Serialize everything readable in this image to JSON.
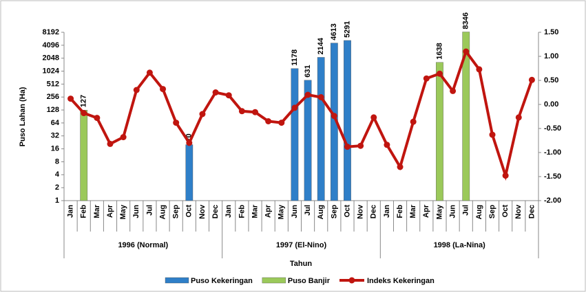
{
  "chart_data": {
    "type": "bar-line",
    "y_label": "Puso Lahan (Ha)",
    "x_label": "Tahun",
    "categories": [
      "Jan",
      "Feb",
      "Mar",
      "Apr",
      "May",
      "Jun",
      "Jul",
      "Aug",
      "Sep",
      "Oct",
      "Nov",
      "Dec",
      "Jan",
      "Feb",
      "Mar",
      "Apr",
      "May",
      "Jun",
      "Jul",
      "Aug",
      "Sep",
      "Oct",
      "Nov",
      "Dec",
      "Jan",
      "Feb",
      "Mar",
      "Apr",
      "May",
      "Jun",
      "Jul",
      "Aug",
      "Sep",
      "Oct",
      "Nov",
      "Dec"
    ],
    "groups": [
      "1996 (Normal)",
      "1997 (El-Nino)",
      "1998 (La-Nina)"
    ],
    "series": [
      {
        "name": "Puso Kekeringan",
        "type": "bar",
        "color": "#2f7fc8",
        "values": [
          null,
          null,
          null,
          null,
          null,
          null,
          null,
          null,
          null,
          20,
          null,
          null,
          null,
          null,
          null,
          null,
          null,
          1178,
          631,
          2144,
          4613,
          5291,
          null,
          null,
          null,
          null,
          null,
          null,
          null,
          null,
          null,
          null,
          null,
          null,
          null,
          null
        ]
      },
      {
        "name": "Puso Banjir",
        "type": "bar",
        "color": "#9bc95a",
        "values": [
          null,
          127,
          null,
          null,
          null,
          null,
          null,
          null,
          null,
          null,
          null,
          null,
          null,
          null,
          null,
          null,
          null,
          null,
          null,
          null,
          null,
          null,
          null,
          null,
          null,
          null,
          null,
          null,
          1638,
          null,
          8346,
          null,
          null,
          null,
          null,
          null
        ]
      },
      {
        "name": "Indeks Kekeringan",
        "type": "line",
        "axis": "y2",
        "color": "#c0150f",
        "values": [
          0.12,
          -0.18,
          -0.28,
          -0.82,
          -0.68,
          0.3,
          0.66,
          0.32,
          -0.38,
          -0.8,
          -0.2,
          0.25,
          0.19,
          -0.14,
          -0.16,
          -0.35,
          -0.38,
          -0.07,
          0.2,
          0.15,
          -0.24,
          -0.88,
          -0.86,
          -0.27,
          -0.84,
          -1.3,
          -0.36,
          0.54,
          0.64,
          0.28,
          1.1,
          0.73,
          -0.63,
          -1.48,
          -0.27,
          0.51
        ]
      }
    ],
    "log_scale": true,
    "ylim": [
      1,
      8192
    ],
    "yticks": [
      1,
      2,
      4,
      8,
      16,
      32,
      64,
      128,
      256,
      512,
      1024,
      2048,
      4096,
      8192
    ],
    "y2lim": [
      -2,
      1.5
    ],
    "y2ticks": [
      {
        "value": -2,
        "label": "-2.00"
      },
      {
        "value": -1.5,
        "label": "-1.50"
      },
      {
        "value": -1,
        "label": "-1.00"
      },
      {
        "value": -0.5,
        "label": "-0.50"
      },
      {
        "value": 0,
        "label": "0.00"
      },
      {
        "value": 0.5,
        "label": "0.50"
      },
      {
        "value": 1,
        "label": "1.00"
      },
      {
        "value": 1.5,
        "label": "1.50"
      }
    ],
    "legend": "bottom"
  }
}
